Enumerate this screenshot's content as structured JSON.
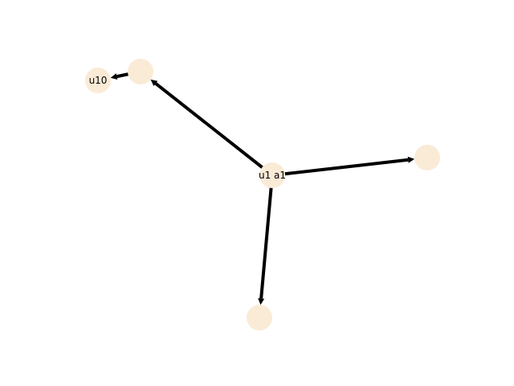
{
  "graph": {
    "directed": true,
    "colors": {
      "node_fill": "#faebd7",
      "edge": "#000000",
      "label": "#000000",
      "background": "#ffffff"
    },
    "nodes": [
      {
        "id": "hub",
        "label": "u1 a1"
      },
      {
        "id": "upper-left",
        "label": ""
      },
      {
        "id": "far-left",
        "label": "u10"
      },
      {
        "id": "right",
        "label": ""
      },
      {
        "id": "bottom",
        "label": ""
      }
    ],
    "edges": [
      {
        "source": "hub",
        "target": "upper-left"
      },
      {
        "source": "upper-left",
        "target": "far-left"
      },
      {
        "source": "hub",
        "target": "right"
      },
      {
        "source": "hub",
        "target": "bottom"
      }
    ]
  }
}
